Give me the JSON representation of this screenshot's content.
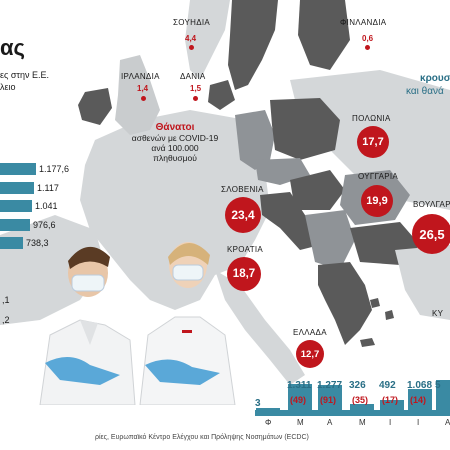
{
  "header": {
    "title_fragment": "ας",
    "subtitle_line1": "ες στην Ε.Ε.",
    "subtitle_line2": "λειο"
  },
  "legend": {
    "title": "Θάνατοι",
    "line1": "ασθενών με COVID-19",
    "line2": "ανά 100.000",
    "line3": "πληθυσμού"
  },
  "right_text": {
    "line1": "κρουσ",
    "line2": "και θανά"
  },
  "countries": [
    {
      "name": "ΣΟΥΗΔΙΑ",
      "value": "4,4"
    },
    {
      "name": "ΦΙΝΛΑΝΔΙΑ",
      "value": "0,6"
    },
    {
      "name": "ΙΡΛΑΝΔΙΑ",
      "value": "1,4"
    },
    {
      "name": "ΔΑΝΙΑ",
      "value": "1,5"
    },
    {
      "name": "ΠΟΛΩΝΙΑ",
      "value": "17,7"
    },
    {
      "name": "ΟΥΓΓΑΡΙΑ",
      "value": "19,9"
    },
    {
      "name": "ΣΛΟΒΕΝΙΑ",
      "value": "23,4"
    },
    {
      "name": "ΒΟΥΛΓΑΡ",
      "value": "26,5"
    },
    {
      "name": "ΚΡΟΑΤΙΑ",
      "value": "18,7"
    },
    {
      "name": "ΕΛΛΑΔΑ",
      "value": "12,7"
    },
    {
      "name": "ΚΥ",
      "value": ""
    }
  ],
  "bars": [
    {
      "label": "1.177,6",
      "value": 1177.6
    },
    {
      "label": "1.117",
      "value": 1117
    },
    {
      "label": "1.041",
      "value": 1041
    },
    {
      "label": "976,6",
      "value": 976.6
    },
    {
      "label": "738,3",
      "value": 738.3
    },
    {
      "label": ",1",
      "value": null
    },
    {
      "label": ",2",
      "value": null
    }
  ],
  "timeline": {
    "months": [
      "Φ",
      "Μ",
      "Α",
      "Μ",
      "Ι",
      "Ι",
      "Α"
    ],
    "cases": [
      "3",
      "1.311",
      "1.277",
      "326",
      "492",
      "1.068",
      "5"
    ],
    "deaths": [
      "",
      "(49)",
      "(91)",
      "(35)",
      "(17)",
      "(14)",
      ""
    ]
  },
  "source": "ρίες, Ευρωπαϊκό Κέντρο Ελέγχου και Πρόληψης Νοσημάτων (ECDC)",
  "colors": {
    "land_dark": "#5a5a5a",
    "land_light": "#bfc3c6",
    "sea": "#ffffff",
    "accent_red": "#c0161d",
    "bar_teal": "#3a8aa3"
  }
}
